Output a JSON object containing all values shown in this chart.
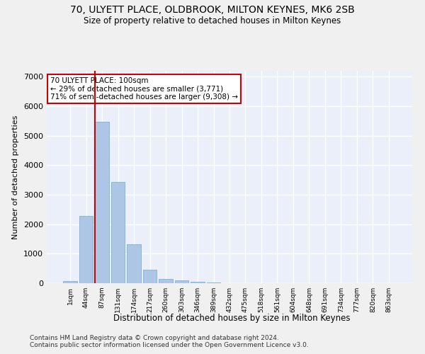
{
  "title": "70, ULYETT PLACE, OLDBROOK, MILTON KEYNES, MK6 2SB",
  "subtitle": "Size of property relative to detached houses in Milton Keynes",
  "xlabel": "Distribution of detached houses by size in Milton Keynes",
  "ylabel": "Number of detached properties",
  "footnote1": "Contains HM Land Registry data © Crown copyright and database right 2024.",
  "footnote2": "Contains public sector information licensed under the Open Government Licence v3.0.",
  "bar_labels": [
    "1sqm",
    "44sqm",
    "87sqm",
    "131sqm",
    "174sqm",
    "217sqm",
    "260sqm",
    "303sqm",
    "346sqm",
    "389sqm",
    "432sqm",
    "475sqm",
    "518sqm",
    "561sqm",
    "604sqm",
    "648sqm",
    "691sqm",
    "734sqm",
    "777sqm",
    "820sqm",
    "863sqm"
  ],
  "bar_values": [
    70,
    2280,
    5470,
    3430,
    1310,
    460,
    150,
    90,
    50,
    30,
    10,
    0,
    0,
    0,
    0,
    0,
    0,
    0,
    0,
    0,
    0
  ],
  "bar_color": "#adc6e5",
  "bar_edgecolor": "#6aaad4",
  "bg_color": "#eaeff9",
  "grid_color": "#ffffff",
  "vline_color": "#cc0000",
  "annotation_text": "70 ULYETT PLACE: 100sqm\n← 29% of detached houses are smaller (3,771)\n71% of semi-detached houses are larger (9,308) →",
  "annotation_box_color": "#cc0000",
  "ylim": [
    0,
    7200
  ],
  "yticks": [
    0,
    1000,
    2000,
    3000,
    4000,
    5000,
    6000,
    7000
  ],
  "fig_bg": "#f0f0f0"
}
